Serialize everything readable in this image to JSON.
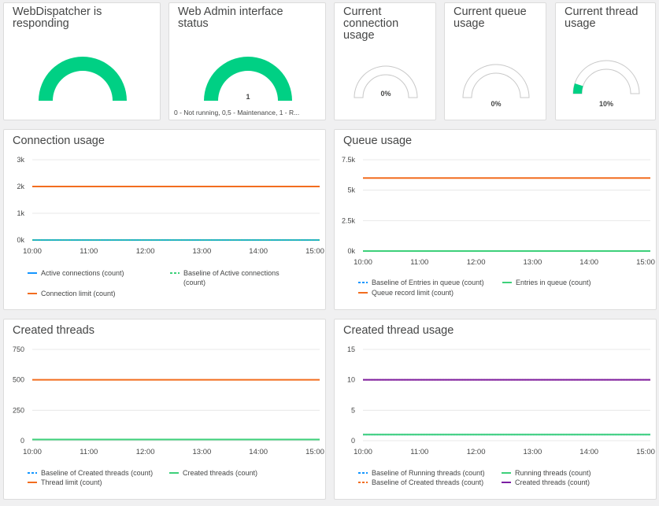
{
  "colors": {
    "gauge_green": "#00d084",
    "blue": "#1496ff",
    "green": "#3dd07a",
    "orange": "#f26d1f",
    "purple": "#7c1fa3",
    "grid": "#e8e8e8"
  },
  "gauges": [
    {
      "title": "WebDispatcher is responding",
      "value_label": "",
      "fill_fraction": 1.0
    },
    {
      "title": "Web Admin interface status",
      "value_label": "1",
      "fill_fraction": 1.0,
      "legend": "0 - Not running, 0,5 - Maintenance, 1 - R..."
    },
    {
      "title": "Current connection usage",
      "value_label": "0%",
      "fill_fraction": 0.0
    },
    {
      "title": "Current queue usage",
      "value_label": "0%",
      "fill_fraction": 0.0
    },
    {
      "title": "Current thread usage",
      "value_label": "10%",
      "fill_fraction": 0.1
    }
  ],
  "charts": {
    "connection": {
      "title": "Connection usage"
    },
    "queue": {
      "title": "Queue usage"
    },
    "threads": {
      "title": "Created threads"
    },
    "thread_usage": {
      "title": "Created thread usage"
    }
  },
  "chart_data": [
    {
      "type": "line",
      "title": "Connection usage",
      "x_ticks": [
        "10:00",
        "11:00",
        "12:00",
        "13:00",
        "14:00",
        "15:00"
      ],
      "y_ticks": [
        "3k",
        "2k",
        "1k",
        "0k"
      ],
      "ylim": [
        0,
        3000
      ],
      "series": [
        {
          "name": "Active connections (count)",
          "color": "#1496ff",
          "dashed": false,
          "value": 0
        },
        {
          "name": "Baseline of Active connections (count)",
          "color": "#3dd07a",
          "dashed": true,
          "value": 0
        },
        {
          "name": "Connection limit (count)",
          "color": "#f26d1f",
          "dashed": false,
          "value": 2000
        }
      ]
    },
    {
      "type": "line",
      "title": "Queue usage",
      "x_ticks": [
        "10:00",
        "11:00",
        "12:00",
        "13:00",
        "14:00",
        "15:00"
      ],
      "y_ticks": [
        "7.5k",
        "5k",
        "2.5k",
        "0k"
      ],
      "ylim": [
        0,
        7500
      ],
      "series": [
        {
          "name": "Baseline of Entries in queue (count)",
          "color": "#1496ff",
          "dashed": true,
          "value": 0
        },
        {
          "name": "Entries in queue (count)",
          "color": "#3dd07a",
          "dashed": false,
          "value": 0
        },
        {
          "name": "Queue record limit (count)",
          "color": "#f26d1f",
          "dashed": false,
          "value": 6000
        }
      ]
    },
    {
      "type": "line",
      "title": "Created threads",
      "x_ticks": [
        "10:00",
        "11:00",
        "12:00",
        "13:00",
        "14:00",
        "15:00"
      ],
      "y_ticks": [
        "750",
        "500",
        "250",
        "0"
      ],
      "ylim": [
        0,
        750
      ],
      "series": [
        {
          "name": "Baseline of Created threads (count)",
          "color": "#1496ff",
          "dashed": true,
          "value": 10
        },
        {
          "name": "Created threads (count)",
          "color": "#3dd07a",
          "dashed": false,
          "value": 10
        },
        {
          "name": "Thread limit (count)",
          "color": "#f26d1f",
          "dashed": false,
          "value": 500
        }
      ]
    },
    {
      "type": "line",
      "title": "Created thread usage",
      "x_ticks": [
        "10:00",
        "11:00",
        "12:00",
        "13:00",
        "14:00",
        "15:00"
      ],
      "y_ticks": [
        "15",
        "10",
        "5",
        "0"
      ],
      "ylim": [
        0,
        15
      ],
      "series": [
        {
          "name": "Baseline of Running threads (count)",
          "color": "#1496ff",
          "dashed": true,
          "value": 1
        },
        {
          "name": "Running threads (count)",
          "color": "#3dd07a",
          "dashed": false,
          "value": 1
        },
        {
          "name": "Baseline of Created threads (count)",
          "color": "#f26d1f",
          "dashed": true,
          "value": 10
        },
        {
          "name": "Created threads (count)",
          "color": "#7c1fa3",
          "dashed": false,
          "value": 10
        }
      ]
    }
  ]
}
